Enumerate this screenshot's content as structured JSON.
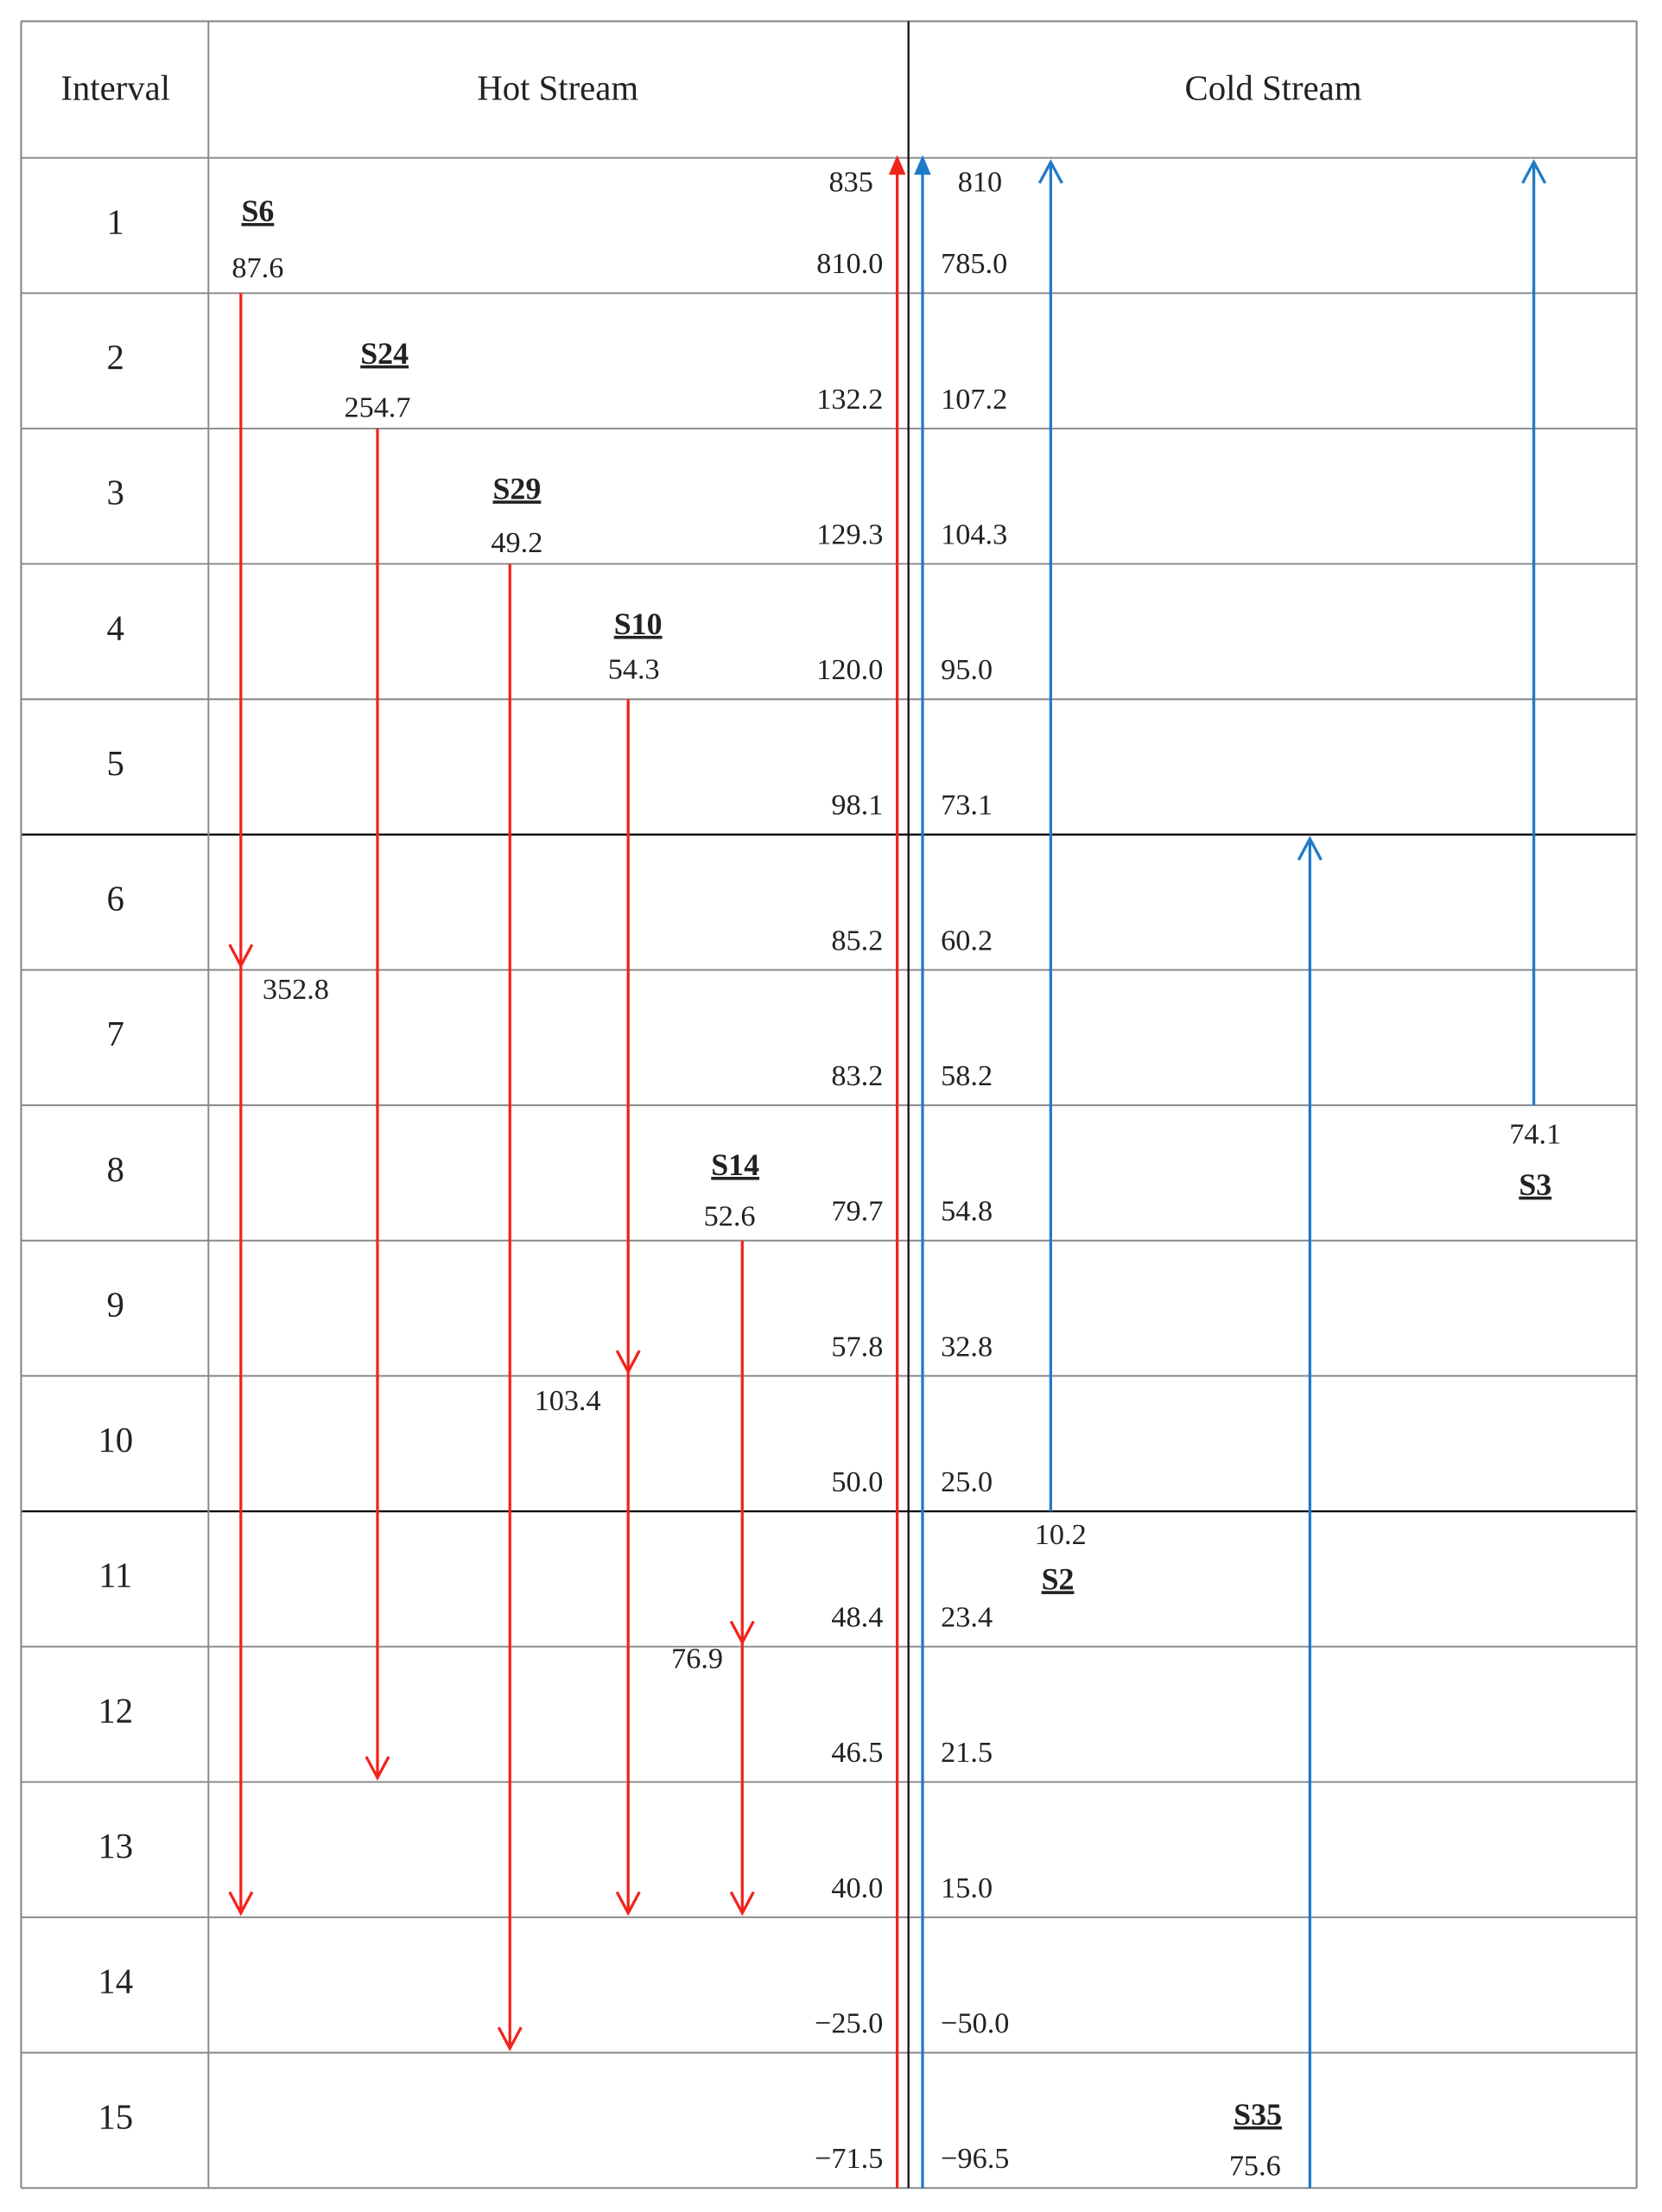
{
  "header": {
    "interval": "Interval",
    "hot": "Hot Stream",
    "cold": "Cold Stream"
  },
  "intervals": [
    "1",
    "2",
    "3",
    "4",
    "5",
    "6",
    "7",
    "8",
    "9",
    "10",
    "11",
    "12",
    "13",
    "14",
    "15"
  ],
  "hot_top": "835",
  "cold_top": "810",
  "hot_temperatures": [
    "810.0",
    "132.2",
    "129.3",
    "120.0",
    "98.1",
    "85.2",
    "83.2",
    "79.7",
    "57.8",
    "50.0",
    "48.4",
    "46.5",
    "40.0",
    "−25.0",
    "−71.5"
  ],
  "cold_temperatures": [
    "785.0",
    "107.2",
    "104.3",
    "95.0",
    "73.1",
    "60.2",
    "58.2",
    "54.8",
    "32.8",
    "25.0",
    "23.4",
    "21.5",
    "15.0",
    "−50.0",
    "−96.5"
  ],
  "hot_streams": [
    {
      "name": "S6",
      "duty": "87.6",
      "mid_labels": [
        "352.8"
      ]
    },
    {
      "name": "S24",
      "duty": "254.7",
      "mid_labels": []
    },
    {
      "name": "S29",
      "duty": "49.2",
      "mid_labels": []
    },
    {
      "name": "S10",
      "duty": "54.3",
      "mid_labels": [
        "103.4"
      ]
    },
    {
      "name": "S14",
      "duty": "52.6",
      "mid_labels": [
        "76.9"
      ]
    }
  ],
  "cold_streams": [
    {
      "name": "S2",
      "duty": "10.2"
    },
    {
      "name": "S3",
      "duty": "74.1"
    },
    {
      "name": "S35",
      "duty": "75.6"
    }
  ]
}
